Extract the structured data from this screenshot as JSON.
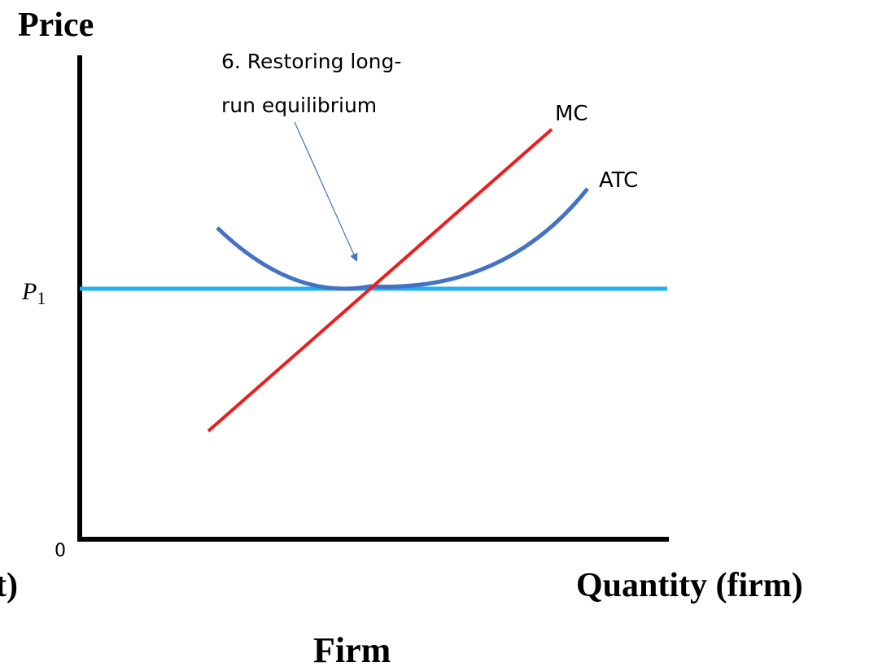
{
  "chart_data": {
    "type": "line",
    "ylabel": "Price",
    "xlabel": "Quantity (firm)",
    "xlabel_fragment": "t)",
    "panel_title": "Firm",
    "origin_label": "0",
    "price_label": "P",
    "price_label_subscript": "1",
    "annotation": {
      "line1": "6. Restoring long-",
      "line2": "run equilibrium"
    },
    "series": [
      {
        "name": "MC",
        "color": "#ee1c1c",
        "shape": "upward-sloping line"
      },
      {
        "name": "ATC",
        "color": "#4472c4",
        "shape": "U-shaped curve, minimum at MC crossing"
      },
      {
        "name": "",
        "color": "#1fb0f0",
        "shape": "horizontal price line at P1"
      }
    ],
    "axis_color": "#000000",
    "grid": false
  }
}
